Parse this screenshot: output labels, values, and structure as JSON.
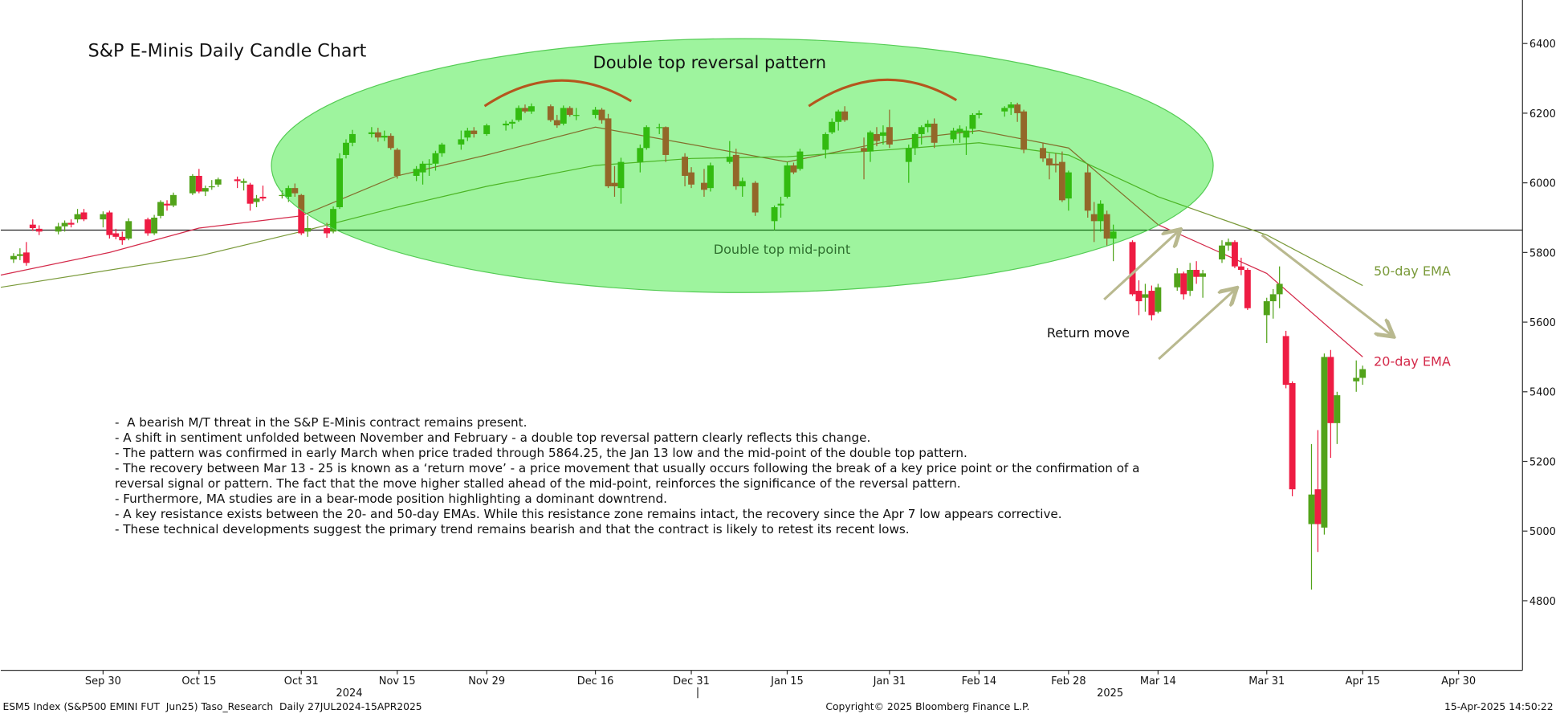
{
  "chart_data": {
    "type": "candlestick",
    "title": "S&P E-Minis Daily Candle Chart",
    "up_color": "#52a31a",
    "down_color": "#ee1c43",
    "x": [
      "2024-09-16",
      "2024-09-17",
      "2024-09-18",
      "2024-09-19",
      "2024-09-20",
      "2024-09-23",
      "2024-09-24",
      "2024-09-25",
      "2024-09-26",
      "2024-09-27",
      "2024-09-30",
      "2024-10-01",
      "2024-10-02",
      "2024-10-03",
      "2024-10-04",
      "2024-10-07",
      "2024-10-08",
      "2024-10-09",
      "2024-10-10",
      "2024-10-11",
      "2024-10-14",
      "2024-10-15",
      "2024-10-16",
      "2024-10-17",
      "2024-10-18",
      "2024-10-21",
      "2024-10-22",
      "2024-10-23",
      "2024-10-24",
      "2024-10-25",
      "2024-10-28",
      "2024-10-29",
      "2024-10-30",
      "2024-10-31",
      "2024-11-01",
      "2024-11-04",
      "2024-11-05",
      "2024-11-06",
      "2024-11-07",
      "2024-11-08",
      "2024-11-11",
      "2024-11-12",
      "2024-11-13",
      "2024-11-14",
      "2024-11-15",
      "2024-11-18",
      "2024-11-19",
      "2024-11-20",
      "2024-11-21",
      "2024-11-22",
      "2024-11-25",
      "2024-11-26",
      "2024-11-27",
      "2024-11-29",
      "2024-12-02",
      "2024-12-03",
      "2024-12-04",
      "2024-12-05",
      "2024-12-06",
      "2024-12-09",
      "2024-12-10",
      "2024-12-11",
      "2024-12-12",
      "2024-12-13",
      "2024-12-16",
      "2024-12-17",
      "2024-12-18",
      "2024-12-19",
      "2024-12-20",
      "2024-12-23",
      "2024-12-24",
      "2024-12-26",
      "2024-12-27",
      "2024-12-30",
      "2024-12-31",
      "2025-01-02",
      "2025-01-03",
      "2025-01-06",
      "2025-01-07",
      "2025-01-08",
      "2025-01-10",
      "2025-01-13",
      "2025-01-14",
      "2025-01-15",
      "2025-01-16",
      "2025-01-17",
      "2025-01-21",
      "2025-01-22",
      "2025-01-23",
      "2025-01-24",
      "2025-01-27",
      "2025-01-28",
      "2025-01-29",
      "2025-01-30",
      "2025-01-31",
      "2025-02-03",
      "2025-02-04",
      "2025-02-05",
      "2025-02-06",
      "2025-02-07",
      "2025-02-10",
      "2025-02-11",
      "2025-02-12",
      "2025-02-13",
      "2025-02-14",
      "2025-02-18",
      "2025-02-19",
      "2025-02-20",
      "2025-02-21",
      "2025-02-24",
      "2025-02-25",
      "2025-02-26",
      "2025-02-27",
      "2025-02-28",
      "2025-03-03",
      "2025-03-04",
      "2025-03-05",
      "2025-03-06",
      "2025-03-07",
      "2025-03-10",
      "2025-03-11",
      "2025-03-12",
      "2025-03-13",
      "2025-03-14",
      "2025-03-17",
      "2025-03-18",
      "2025-03-19",
      "2025-03-20",
      "2025-03-21",
      "2025-03-24",
      "2025-03-25",
      "2025-03-26",
      "2025-03-27",
      "2025-03-28",
      "2025-03-31",
      "2025-04-01",
      "2025-04-02",
      "2025-04-03",
      "2025-04-04",
      "2025-04-07",
      "2025-04-08",
      "2025-04-09",
      "2025-04-10",
      "2025-04-11",
      "2025-04-14",
      "2025-04-15"
    ],
    "open": [
      5780,
      5790,
      5800,
      5880,
      5868,
      5860,
      5875,
      5885,
      5895,
      5915,
      5895,
      5915,
      5855,
      5845,
      5840,
      5895,
      5855,
      5905,
      5940,
      5935,
      5970,
      6020,
      5975,
      5990,
      5995,
      6010,
      6000,
      5995,
      5945,
      5960,
      5965,
      5960,
      5985,
      5965,
      5860,
      5870,
      5860,
      5930,
      6080,
      6115,
      6140,
      6145,
      6130,
      6135,
      6095,
      6020,
      6030,
      6055,
      6055,
      6085,
      6110,
      6130,
      6150,
      6140,
      6165,
      6170,
      6180,
      6215,
      6205,
      6220,
      6180,
      6170,
      6215,
      6195,
      6195,
      6210,
      6185,
      6000,
      5985,
      6060,
      6100,
      6160,
      6160,
      6075,
      6030,
      6000,
      5985,
      6060,
      6080,
      5990,
      6000,
      5890,
      5935,
      5960,
      6050,
      6040,
      6095,
      6145,
      6175,
      6205,
      6100,
      6090,
      6140,
      6135,
      6160,
      6060,
      6100,
      6140,
      6160,
      6170,
      6125,
      6145,
      6130,
      6155,
      6195,
      6205,
      6215,
      6225,
      6205,
      6100,
      6070,
      6055,
      6060,
      5955,
      6030,
      5910,
      5890,
      5910,
      5840,
      5830,
      5690,
      5670,
      5690,
      5630,
      5700,
      5740,
      5690,
      5750,
      5730,
      5780,
      5820,
      5830,
      5760,
      5750,
      5620,
      5660,
      5680,
      5560,
      5425,
      5020,
      5120,
      5010,
      5500,
      5310,
      5430,
      5440
    ],
    "high": [
      5798,
      5812,
      5830,
      5895,
      5878,
      5885,
      5892,
      5895,
      5925,
      5925,
      5918,
      5920,
      5868,
      5860,
      5898,
      5900,
      5908,
      5950,
      5950,
      5972,
      6025,
      6040,
      5992,
      6008,
      6015,
      6018,
      6012,
      6000,
      5965,
      5992,
      5978,
      5992,
      5998,
      5968,
      5905,
      5885,
      5932,
      6085,
      6125,
      6152,
      6160,
      6158,
      6150,
      6142,
      6100,
      6048,
      6062,
      6068,
      6092,
      6115,
      6150,
      6158,
      6160,
      6170,
      6178,
      6182,
      6222,
      6225,
      6228,
      6225,
      6195,
      6222,
      6220,
      6215,
      6218,
      6215,
      6198,
      6048,
      6072,
      6110,
      6165,
      6170,
      6162,
      6085,
      6045,
      6040,
      6058,
      6120,
      6098,
      6015,
      6005,
      5935,
      5960,
      6060,
      6058,
      6098,
      6145,
      6185,
      6210,
      6220,
      6130,
      6150,
      6160,
      6165,
      6210,
      6110,
      6145,
      6165,
      6180,
      6185,
      6158,
      6165,
      6162,
      6200,
      6208,
      6220,
      6232,
      6230,
      6210,
      6115,
      6085,
      6085,
      6090,
      6035,
      6055,
      5945,
      5950,
      5920,
      5880,
      5835,
      5720,
      5710,
      5705,
      5710,
      5755,
      5745,
      5770,
      5775,
      5750,
      5835,
      5840,
      5835,
      5785,
      5755,
      5670,
      5695,
      5760,
      5575,
      5430,
      5250,
      5290,
      5510,
      5520,
      5400,
      5490,
      5475
    ],
    "low": [
      5770,
      5778,
      5762,
      5862,
      5850,
      5852,
      5860,
      5872,
      5885,
      5890,
      5872,
      5840,
      5838,
      5822,
      5835,
      5848,
      5850,
      5898,
      5920,
      5930,
      5965,
      5970,
      5962,
      5980,
      5988,
      5985,
      5978,
      5920,
      5930,
      5948,
      5955,
      5945,
      5960,
      5850,
      5845,
      5842,
      5855,
      5925,
      6070,
      6105,
      6130,
      6118,
      6120,
      6095,
      6012,
      6005,
      5995,
      6020,
      6035,
      6075,
      6095,
      6120,
      6130,
      6135,
      6150,
      6155,
      6175,
      6200,
      6198,
      6175,
      6158,
      6165,
      6190,
      6180,
      6185,
      6170,
      5985,
      5960,
      5940,
      6030,
      6095,
      6140,
      6060,
      5990,
      5985,
      5960,
      5975,
      6055,
      5980,
      5960,
      5905,
      5864.25,
      5900,
      5955,
      6025,
      6035,
      6070,
      6140,
      6150,
      6175,
      6010,
      6060,
      6105,
      6110,
      6100,
      6000,
      6080,
      6110,
      6145,
      6100,
      6115,
      6115,
      6080,
      6140,
      6185,
      6190,
      6195,
      6175,
      6085,
      6060,
      6010,
      6030,
      5945,
      5920,
      5900,
      5830,
      5860,
      5820,
      5775,
      5675,
      5620,
      5630,
      5605,
      5625,
      5690,
      5665,
      5675,
      5710,
      5670,
      5770,
      5805,
      5755,
      5735,
      5635,
      5540,
      5610,
      5640,
      5410,
      5100,
      4832,
      4940,
      4990,
      5210,
      5250,
      5400,
      5420
    ],
    "close": [
      5790,
      5795,
      5770,
      5870,
      5860,
      5875,
      5885,
      5880,
      5910,
      5895,
      5910,
      5850,
      5845,
      5835,
      5890,
      5855,
      5900,
      5945,
      5935,
      5965,
      6020,
      5975,
      5985,
      5990,
      6010,
      6005,
      6005,
      5940,
      5955,
      5955,
      5965,
      5985,
      5970,
      5855,
      5870,
      5855,
      5925,
      6070,
      6115,
      6140,
      6145,
      6130,
      6135,
      6100,
      6020,
      6040,
      6055,
      6055,
      6085,
      6110,
      6125,
      6150,
      6140,
      6165,
      6170,
      6175,
      6215,
      6205,
      6220,
      6180,
      6165,
      6215,
      6195,
      6195,
      6210,
      6180,
      5990,
      5990,
      6060,
      6100,
      6160,
      6160,
      6080,
      6020,
      5995,
      5980,
      6050,
      6075,
      5990,
      6005,
      5915,
      5930,
      5940,
      6050,
      6030,
      6090,
      6140,
      6175,
      6205,
      6180,
      6090,
      6145,
      6120,
      6145,
      6110,
      6100,
      6140,
      6160,
      6170,
      6115,
      6150,
      6155,
      6150,
      6195,
      6200,
      6215,
      6225,
      6200,
      6095,
      6070,
      6050,
      6050,
      5950,
      6030,
      5920,
      5890,
      5940,
      5840,
      5860,
      5680,
      5660,
      5680,
      5620,
      5700,
      5740,
      5680,
      5750,
      5730,
      5740,
      5820,
      5830,
      5760,
      5750,
      5640,
      5660,
      5680,
      5710,
      5420,
      5120,
      5105,
      5020,
      5500,
      5310,
      5390,
      5440,
      5465
    ],
    "ema_series": [
      {
        "name": "20-day EMA",
        "color": "#d42a4a",
        "x": [
          "2024-09-14",
          "2024-10-01",
          "2024-10-15",
          "2024-10-31",
          "2024-11-15",
          "2024-11-29",
          "2024-12-16",
          "2024-12-31",
          "2025-01-15",
          "2025-01-31",
          "2025-02-14",
          "2025-02-28",
          "2025-03-14",
          "2025-03-31",
          "2025-04-15"
        ],
        "values": [
          5735,
          5800,
          5870,
          5905,
          6020,
          6080,
          6160,
          6110,
          6060,
          6120,
          6150,
          6100,
          5880,
          5740,
          5500
        ]
      },
      {
        "name": "50-day EMA",
        "color": "#7a9a3a",
        "x": [
          "2024-09-14",
          "2024-10-15",
          "2024-10-31",
          "2024-11-15",
          "2024-11-29",
          "2024-12-16",
          "2024-12-31",
          "2025-01-15",
          "2025-01-31",
          "2025-02-14",
          "2025-02-28",
          "2025-03-14",
          "2025-03-31",
          "2025-04-15"
        ],
        "values": [
          5700,
          5790,
          5860,
          5930,
          5990,
          6050,
          6070,
          6075,
          6095,
          6115,
          6080,
          5960,
          5850,
          5705
        ]
      }
    ],
    "midpoint_level": 5864.25,
    "xlim": [
      "2024-09-14",
      "2025-05-10"
    ],
    "xticks": [
      {
        "value": "2024-09-30",
        "label": "Sep 30"
      },
      {
        "value": "2024-10-15",
        "label": "Oct 15"
      },
      {
        "value": "2024-10-31",
        "label": "Oct 31"
      },
      {
        "value": "2024-11-15",
        "label": "Nov 15"
      },
      {
        "value": "2024-11-29",
        "label": "Nov 29"
      },
      {
        "value": "2024-12-16",
        "label": "Dec 16"
      },
      {
        "value": "2024-12-31",
        "label": "Dec 31"
      },
      {
        "value": "2025-01-15",
        "label": "Jan 15"
      },
      {
        "value": "2025-01-31",
        "label": "Jan 31"
      },
      {
        "value": "2025-02-14",
        "label": "Feb 14"
      },
      {
        "value": "2025-02-28",
        "label": "Feb 28"
      },
      {
        "value": "2025-03-14",
        "label": "Mar 14"
      },
      {
        "value": "2025-03-31",
        "label": "Mar 31"
      },
      {
        "value": "2025-04-15",
        "label": "Apr 15"
      },
      {
        "value": "2025-04-30",
        "label": "Apr 30"
      }
    ],
    "years": [
      "2024",
      "2025"
    ],
    "ylim": [
      4600,
      6525
    ],
    "yticks": [
      4800,
      5000,
      5200,
      5400,
      5600,
      5800,
      6000,
      6200,
      6400
    ],
    "annotations": {
      "pattern": "Double top reversal pattern",
      "midpoint": "Double top mid-point",
      "return_move": "Return move"
    },
    "notes": [
      "-  A bearish M/T threat in the S&P E-Minis contract remains present.",
      "- A shift in sentiment unfolded between November and February - a double top reversal pattern clearly reflects this change.",
      "- The pattern was confirmed in early March when price traded through 5864.25, the Jan 13 low and the mid-point of the double top pattern.",
      "- The recovery between Mar 13 - 25 is known as a ‘return move’ - a price movement that usually occurs following the break of a key price point or the confirmation of a",
      "reversal signal or pattern. The fact that the move higher stalled ahead of the mid-point, reinforces the significance of the reversal pattern.",
      "- Furthermore, MA studies are in a bear-mode position highlighting a dominant downtrend.",
      "- A key resistance exists between the 20- and 50-day EMAs. While this resistance zone remains intact, the recovery since the Apr 7 low appears corrective.",
      "- These technical developments suggest the primary trend remains bearish and that the contract is likely to retest its recent lows."
    ],
    "footer": {
      "left": "ESM5 Index (S&P500 EMINI FUT  Jun25) Taso_Research  Daily 27JUL2024-15APR2025",
      "center": "Copyright© 2025 Bloomberg Finance L.P.",
      "right": "15-Apr-2025 14:50:22"
    }
  }
}
